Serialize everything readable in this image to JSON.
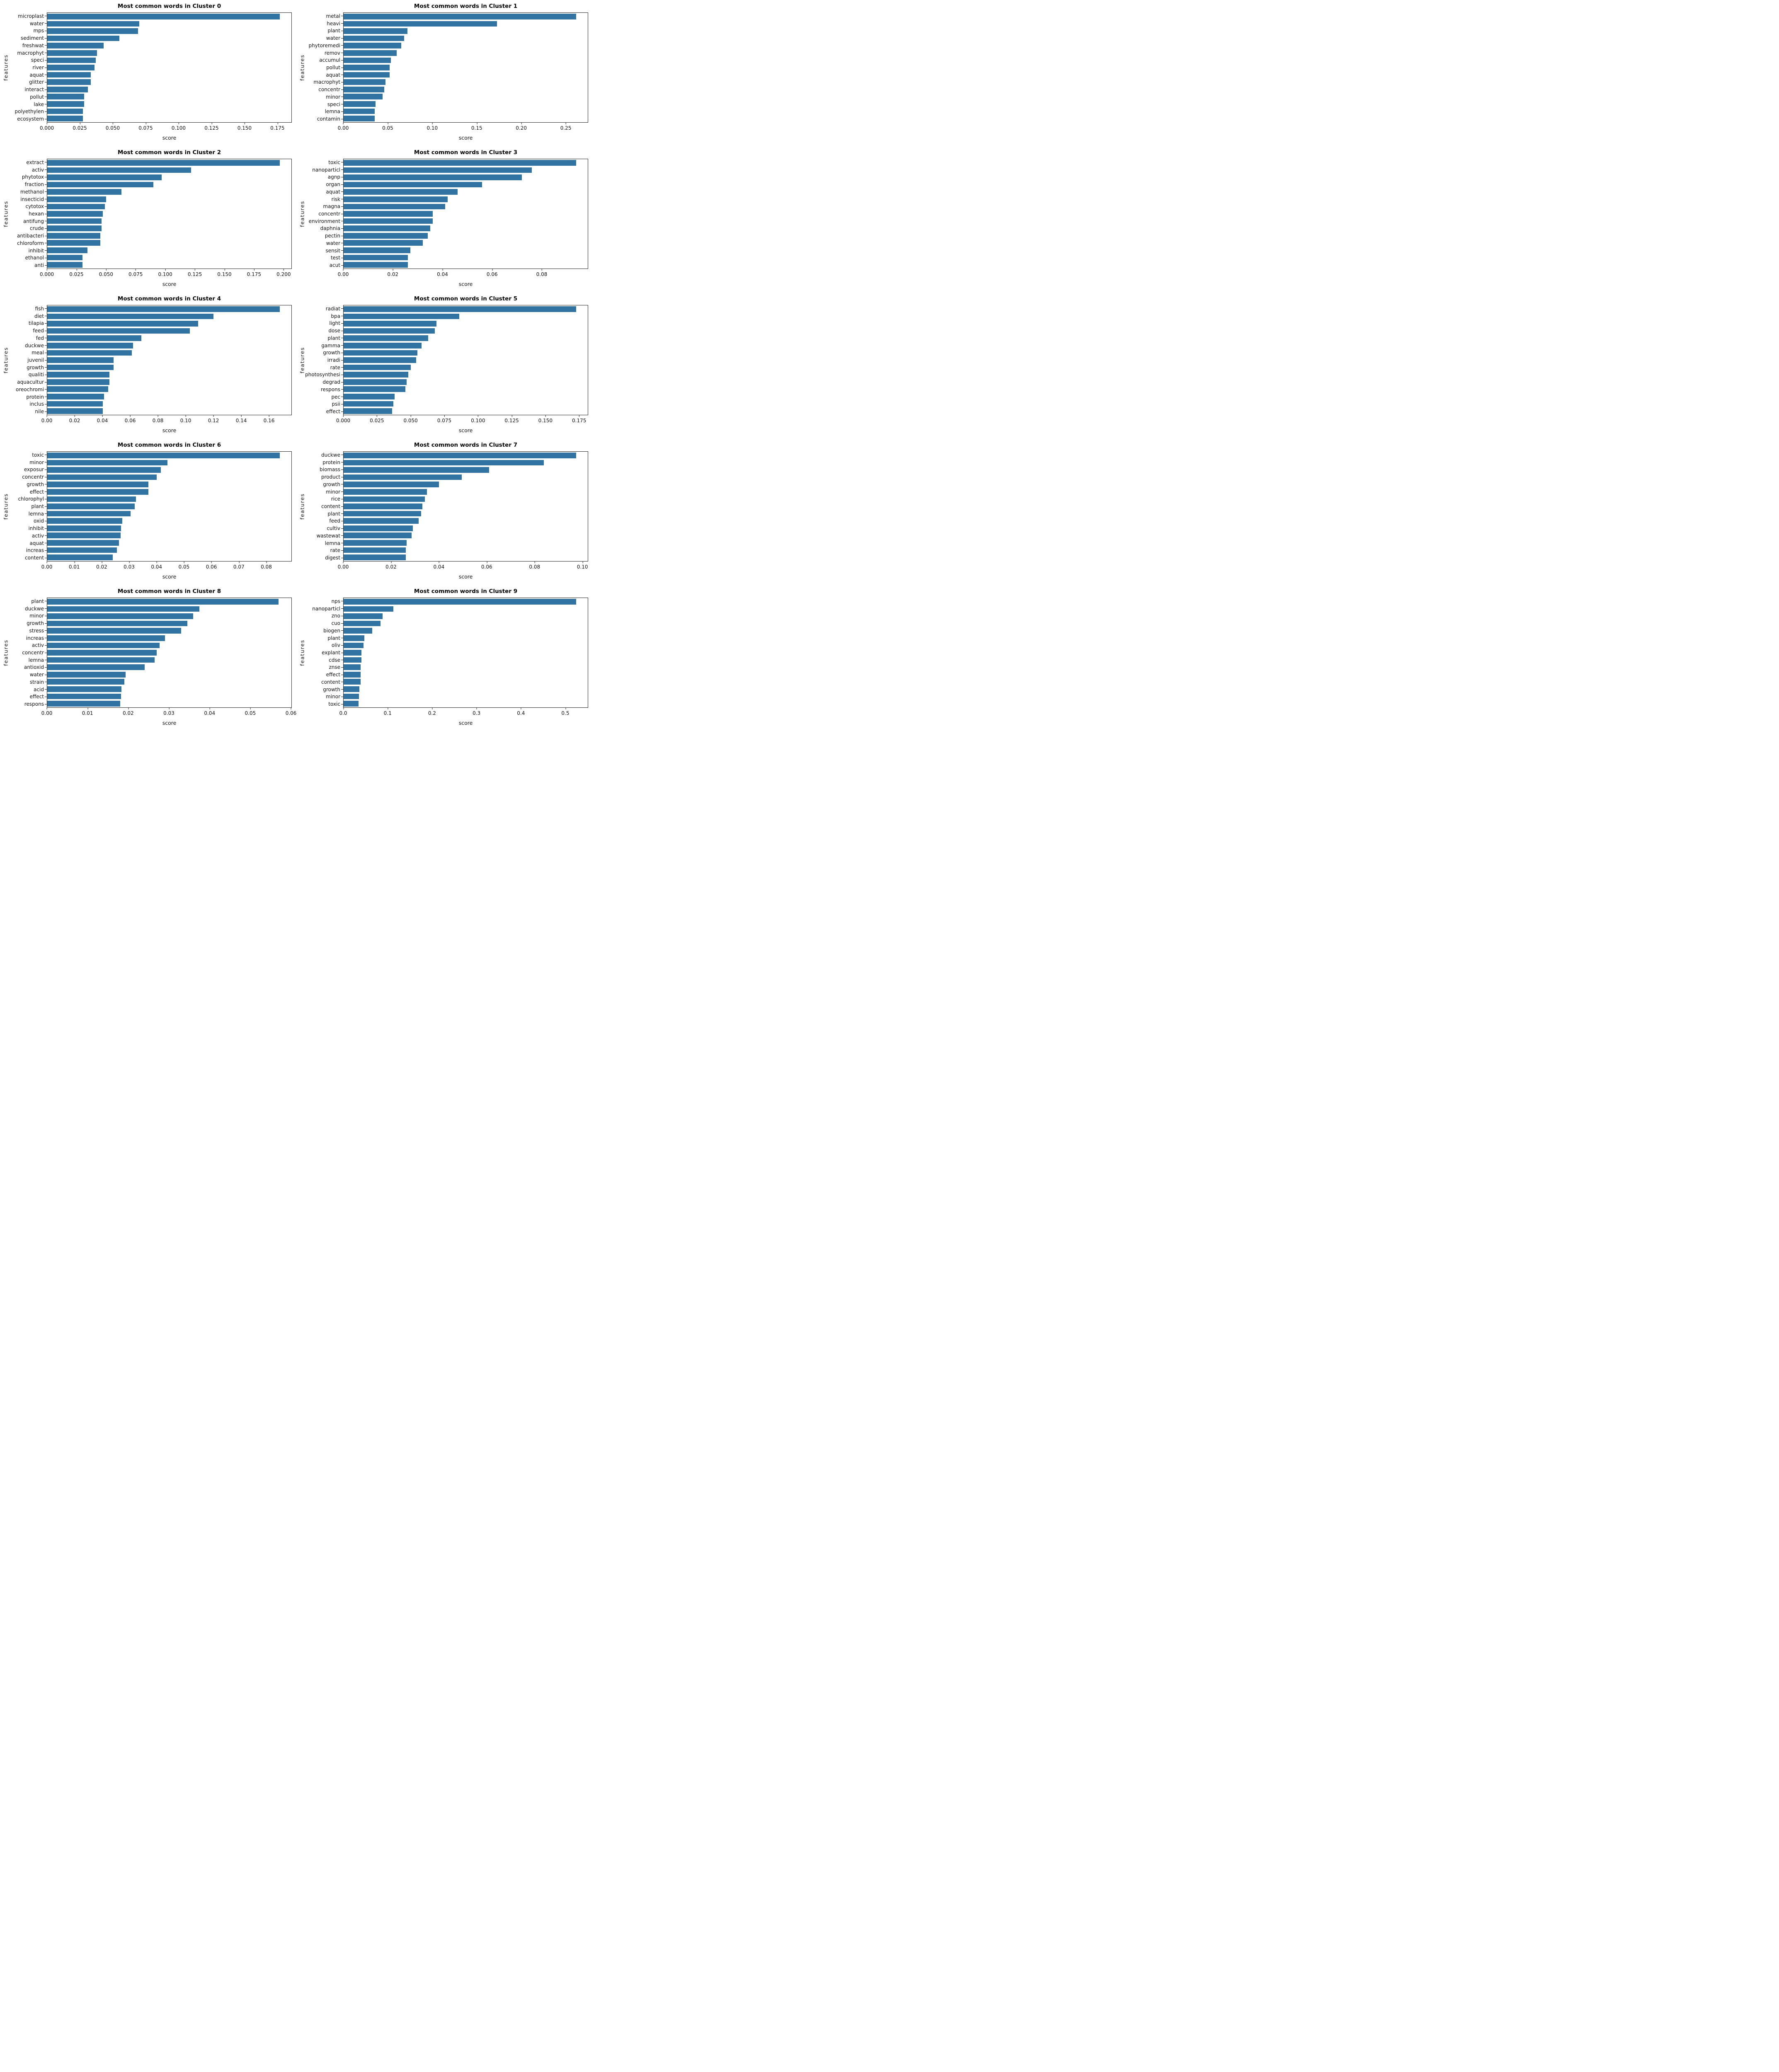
{
  "page": {
    "background": "#ffffff",
    "bar_color": "#3274a1"
  },
  "chart_data": [
    {
      "type": "bar",
      "orientation": "horizontal",
      "title": "Most common words in Cluster 0",
      "xlabel": "score",
      "ylabel": "features",
      "categories": [
        "microplast",
        "water",
        "mps",
        "sediment",
        "freshwat",
        "macrophyt",
        "speci",
        "river",
        "aquat",
        "glitter",
        "interact",
        "pollut",
        "lake",
        "polyethylen",
        "ecosystem"
      ],
      "values": [
        0.177,
        0.07,
        0.069,
        0.055,
        0.043,
        0.038,
        0.037,
        0.036,
        0.033,
        0.033,
        0.031,
        0.028,
        0.028,
        0.027,
        0.027
      ],
      "xlim": [
        0,
        0.1859
      ],
      "xtick_values": [
        0,
        0.025,
        0.05,
        0.075,
        0.1,
        0.125,
        0.15,
        0.175
      ],
      "xtick_labels": [
        "0.000",
        "0.025",
        "0.050",
        "0.075",
        "0.100",
        "0.125",
        "0.150",
        "0.175"
      ],
      "grid": false,
      "legend": null
    },
    {
      "type": "bar",
      "orientation": "horizontal",
      "title": "Most common words in Cluster 1",
      "xlabel": "score",
      "ylabel": "features",
      "categories": [
        "metal",
        "heavi",
        "plant",
        "water",
        "phytoremedi",
        "remov",
        "accumul",
        "pollut",
        "aquat",
        "macrophyt",
        "concentr",
        "minor",
        "speci",
        "lemna",
        "contamin"
      ],
      "values": [
        0.262,
        0.173,
        0.072,
        0.068,
        0.065,
        0.06,
        0.053,
        0.052,
        0.052,
        0.047,
        0.046,
        0.044,
        0.036,
        0.035,
        0.035
      ],
      "xlim": [
        0,
        0.2751
      ],
      "xtick_values": [
        0,
        0.05,
        0.1,
        0.15,
        0.2,
        0.25
      ],
      "xtick_labels": [
        "0.00",
        "0.05",
        "0.10",
        "0.15",
        "0.20",
        "0.25"
      ],
      "grid": false,
      "legend": null
    },
    {
      "type": "bar",
      "orientation": "horizontal",
      "title": "Most common words in Cluster 2",
      "xlabel": "score",
      "ylabel": "features",
      "categories": [
        "extract",
        "activ",
        "phytotox",
        "fraction",
        "methanol",
        "insecticid",
        "cytotox",
        "hexan",
        "antifung",
        "crude",
        "antibacteri",
        "chloroform",
        "inhibit",
        "ethanol",
        "anti"
      ],
      "values": [
        0.197,
        0.122,
        0.097,
        0.09,
        0.063,
        0.05,
        0.049,
        0.047,
        0.046,
        0.046,
        0.045,
        0.045,
        0.034,
        0.03,
        0.03
      ],
      "xlim": [
        0,
        0.2069
      ],
      "xtick_values": [
        0,
        0.025,
        0.05,
        0.075,
        0.1,
        0.125,
        0.15,
        0.175,
        0.2
      ],
      "xtick_labels": [
        "0.000",
        "0.025",
        "0.050",
        "0.075",
        "0.100",
        "0.125",
        "0.150",
        "0.175",
        "0.200"
      ],
      "grid": false,
      "legend": null
    },
    {
      "type": "bar",
      "orientation": "horizontal",
      "title": "Most common words in Cluster 3",
      "xlabel": "score",
      "ylabel": "features",
      "categories": [
        "toxic",
        "nanoparticl",
        "agnp",
        "organ",
        "aquat",
        "risk",
        "magna",
        "concentr",
        "environment",
        "daphnia",
        "pectin",
        "water",
        "sensit",
        "test",
        "acut"
      ],
      "values": [
        0.094,
        0.076,
        0.072,
        0.056,
        0.046,
        0.042,
        0.041,
        0.036,
        0.036,
        0.035,
        0.034,
        0.032,
        0.027,
        0.026,
        0.026
      ],
      "xlim": [
        0,
        0.0987
      ],
      "xtick_values": [
        0,
        0.02,
        0.04,
        0.06,
        0.08
      ],
      "xtick_labels": [
        "0.00",
        "0.02",
        "0.04",
        "0.06",
        "0.08"
      ],
      "grid": false,
      "legend": null
    },
    {
      "type": "bar",
      "orientation": "horizontal",
      "title": "Most common words in Cluster 4",
      "xlabel": "score",
      "ylabel": "features",
      "categories": [
        "fish",
        "diet",
        "tilapia",
        "feed",
        "fed",
        "duckwe",
        "meal",
        "juvenil",
        "growth",
        "qualiti",
        "aquacultur",
        "oreochromi",
        "protein",
        "inclus",
        "nile"
      ],
      "values": [
        0.168,
        0.12,
        0.109,
        0.103,
        0.068,
        0.062,
        0.061,
        0.048,
        0.048,
        0.045,
        0.045,
        0.044,
        0.041,
        0.04,
        0.04
      ],
      "xlim": [
        0,
        0.1764
      ],
      "xtick_values": [
        0,
        0.02,
        0.04,
        0.06,
        0.08,
        0.1,
        0.12,
        0.14,
        0.16
      ],
      "xtick_labels": [
        "0.00",
        "0.02",
        "0.04",
        "0.06",
        "0.08",
        "0.10",
        "0.12",
        "0.14",
        "0.16"
      ],
      "grid": false,
      "legend": null
    },
    {
      "type": "bar",
      "orientation": "horizontal",
      "title": "Most common words in Cluster 5",
      "xlabel": "score",
      "ylabel": "features",
      "categories": [
        "radiat",
        "bpa",
        "light",
        "dose",
        "plant",
        "gamma",
        "growth",
        "irradi",
        "rate",
        "photosynthesi",
        "degrad",
        "respons",
        "pec",
        "psii",
        "effect"
      ],
      "values": [
        0.173,
        0.086,
        0.069,
        0.068,
        0.063,
        0.058,
        0.055,
        0.054,
        0.05,
        0.048,
        0.047,
        0.046,
        0.038,
        0.037,
        0.036
      ],
      "xlim": [
        0,
        0.1817
      ],
      "xtick_values": [
        0,
        0.025,
        0.05,
        0.075,
        0.1,
        0.125,
        0.15,
        0.175
      ],
      "xtick_labels": [
        "0.000",
        "0.025",
        "0.050",
        "0.075",
        "0.100",
        "0.125",
        "0.150",
        "0.175"
      ],
      "grid": false,
      "legend": null
    },
    {
      "type": "bar",
      "orientation": "horizontal",
      "title": "Most common words in Cluster 6",
      "xlabel": "score",
      "ylabel": "features",
      "categories": [
        "toxic",
        "minor",
        "exposur",
        "concentr",
        "growth",
        "effect",
        "chlorophyl",
        "plant",
        "lemna",
        "oxid",
        "inhibit",
        "activ",
        "aquat",
        "increas",
        "content"
      ],
      "values": [
        0.085,
        0.044,
        0.0415,
        0.04,
        0.037,
        0.037,
        0.0325,
        0.032,
        0.0305,
        0.0275,
        0.027,
        0.0268,
        0.0263,
        0.0255,
        0.024
      ],
      "xlim": [
        0,
        0.0893
      ],
      "xtick_values": [
        0,
        0.01,
        0.02,
        0.03,
        0.04,
        0.05,
        0.06,
        0.07,
        0.08
      ],
      "xtick_labels": [
        "0.00",
        "0.01",
        "0.02",
        "0.03",
        "0.04",
        "0.05",
        "0.06",
        "0.07",
        "0.08"
      ],
      "grid": false,
      "legend": null
    },
    {
      "type": "bar",
      "orientation": "horizontal",
      "title": "Most common words in Cluster 7",
      "xlabel": "score",
      "ylabel": "features",
      "categories": [
        "duckwe",
        "protein",
        "biomass",
        "product",
        "growth",
        "minor",
        "rice",
        "content",
        "plant",
        "feed",
        "cultiv",
        "wastewat",
        "lemna",
        "rate",
        "digest"
      ],
      "values": [
        0.0975,
        0.084,
        0.061,
        0.0495,
        0.04,
        0.035,
        0.034,
        0.033,
        0.0325,
        0.0315,
        0.029,
        0.0285,
        0.0265,
        0.026,
        0.026
      ],
      "xlim": [
        0,
        0.1024
      ],
      "xtick_values": [
        0,
        0.02,
        0.04,
        0.06,
        0.08,
        0.1
      ],
      "xtick_labels": [
        "0.00",
        "0.02",
        "0.04",
        "0.06",
        "0.08",
        "0.10"
      ],
      "grid": false,
      "legend": null
    },
    {
      "type": "bar",
      "orientation": "horizontal",
      "title": "Most common words in Cluster 8",
      "xlabel": "score",
      "ylabel": "features",
      "categories": [
        "plant",
        "duckwe",
        "minor",
        "growth",
        "stress",
        "increas",
        "activ",
        "concentr",
        "lemna",
        "antioxid",
        "water",
        "strain",
        "acid",
        "effect",
        "respons"
      ],
      "values": [
        0.057,
        0.0375,
        0.036,
        0.0345,
        0.033,
        0.029,
        0.0277,
        0.027,
        0.0265,
        0.024,
        0.0193,
        0.019,
        0.0183,
        0.0182,
        0.018
      ],
      "xlim": [
        0,
        0.0602
      ],
      "xtick_values": [
        0,
        0.01,
        0.02,
        0.03,
        0.04,
        0.05,
        0.06
      ],
      "xtick_labels": [
        "0.00",
        "0.01",
        "0.02",
        "0.03",
        "0.04",
        "0.05",
        "0.06"
      ],
      "grid": false,
      "legend": null
    },
    {
      "type": "bar",
      "orientation": "horizontal",
      "title": "Most common words in Cluster 9",
      "xlabel": "score",
      "ylabel": "features",
      "categories": [
        "nps",
        "nanoparticl",
        "zno",
        "cuo",
        "biogen",
        "plant",
        "oliv",
        "explant",
        "cdse",
        "znse",
        "effect",
        "content",
        "growth",
        "minor",
        "toxic"
      ],
      "values": [
        0.525,
        0.112,
        0.088,
        0.083,
        0.065,
        0.047,
        0.045,
        0.04,
        0.04,
        0.038,
        0.038,
        0.038,
        0.036,
        0.035,
        0.034
      ],
      "xlim": [
        0,
        0.5513
      ],
      "xtick_values": [
        0,
        0.1,
        0.2,
        0.3,
        0.4,
        0.5
      ],
      "xtick_labels": [
        "0.0",
        "0.1",
        "0.2",
        "0.3",
        "0.4",
        "0.5"
      ],
      "grid": false,
      "legend": null
    }
  ]
}
